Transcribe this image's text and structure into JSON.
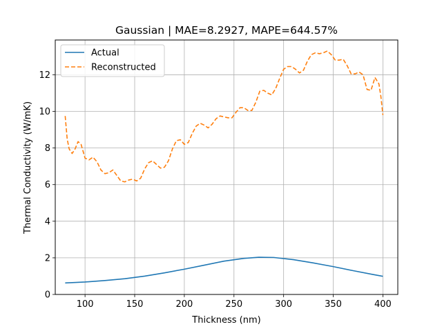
{
  "chart_data": {
    "type": "line",
    "title": "Gaussian | MAE=8.2927, MAPE=644.57%",
    "xlabel": "Thickness (nm)",
    "ylabel": "Thermal Conductivity (W/mK)",
    "xlim": [
      70,
      415
    ],
    "ylim": [
      0,
      13.9
    ],
    "xticks": [
      100,
      150,
      200,
      250,
      300,
      350,
      400
    ],
    "yticks": [
      0,
      2,
      4,
      6,
      8,
      10,
      12
    ],
    "grid": true,
    "legend_position": "top-left",
    "series": [
      {
        "name": "Actual",
        "color": "#1f77b4",
        "style": "solid",
        "x": [
          80,
          100,
          120,
          140,
          160,
          180,
          200,
          220,
          240,
          260,
          275,
          290,
          310,
          330,
          350,
          370,
          390,
          400
        ],
        "y": [
          0.63,
          0.68,
          0.76,
          0.86,
          1.0,
          1.18,
          1.38,
          1.6,
          1.82,
          1.97,
          2.03,
          2.02,
          1.9,
          1.72,
          1.52,
          1.3,
          1.09,
          0.99
        ]
      },
      {
        "name": "Reconstructed",
        "color": "#ff7f0e",
        "style": "dashed",
        "x": [
          80,
          82,
          84,
          87,
          90,
          93,
          96,
          100,
          104,
          108,
          112,
          116,
          120,
          124,
          128,
          132,
          136,
          140,
          144,
          148,
          152,
          156,
          160,
          164,
          168,
          172,
          176,
          180,
          184,
          188,
          192,
          196,
          200,
          204,
          208,
          212,
          216,
          220,
          224,
          228,
          232,
          236,
          240,
          244,
          248,
          252,
          256,
          260,
          264,
          268,
          272,
          276,
          280,
          284,
          288,
          292,
          296,
          300,
          304,
          308,
          312,
          316,
          320,
          324,
          328,
          332,
          336,
          340,
          344,
          348,
          352,
          356,
          360,
          364,
          368,
          372,
          376,
          380,
          384,
          388,
          392,
          396,
          398,
          400
        ],
        "y": [
          9.75,
          8.5,
          7.95,
          7.7,
          7.95,
          8.35,
          8.2,
          7.45,
          7.35,
          7.5,
          7.25,
          6.8,
          6.6,
          6.65,
          6.8,
          6.5,
          6.2,
          6.15,
          6.25,
          6.3,
          6.2,
          6.35,
          6.85,
          7.2,
          7.3,
          7.1,
          6.9,
          6.95,
          7.3,
          7.95,
          8.4,
          8.45,
          8.2,
          8.3,
          8.8,
          9.2,
          9.35,
          9.25,
          9.1,
          9.3,
          9.6,
          9.75,
          9.7,
          9.65,
          9.65,
          9.95,
          10.2,
          10.2,
          10.05,
          10.05,
          10.5,
          11.1,
          11.15,
          11.0,
          10.9,
          11.25,
          11.8,
          12.3,
          12.45,
          12.45,
          12.3,
          12.1,
          12.25,
          12.75,
          13.1,
          13.2,
          13.15,
          13.2,
          13.3,
          13.1,
          12.8,
          12.8,
          12.85,
          12.5,
          12.05,
          12.05,
          12.15,
          12.0,
          11.2,
          11.15,
          11.85,
          11.5,
          10.8,
          9.8
        ]
      }
    ]
  }
}
